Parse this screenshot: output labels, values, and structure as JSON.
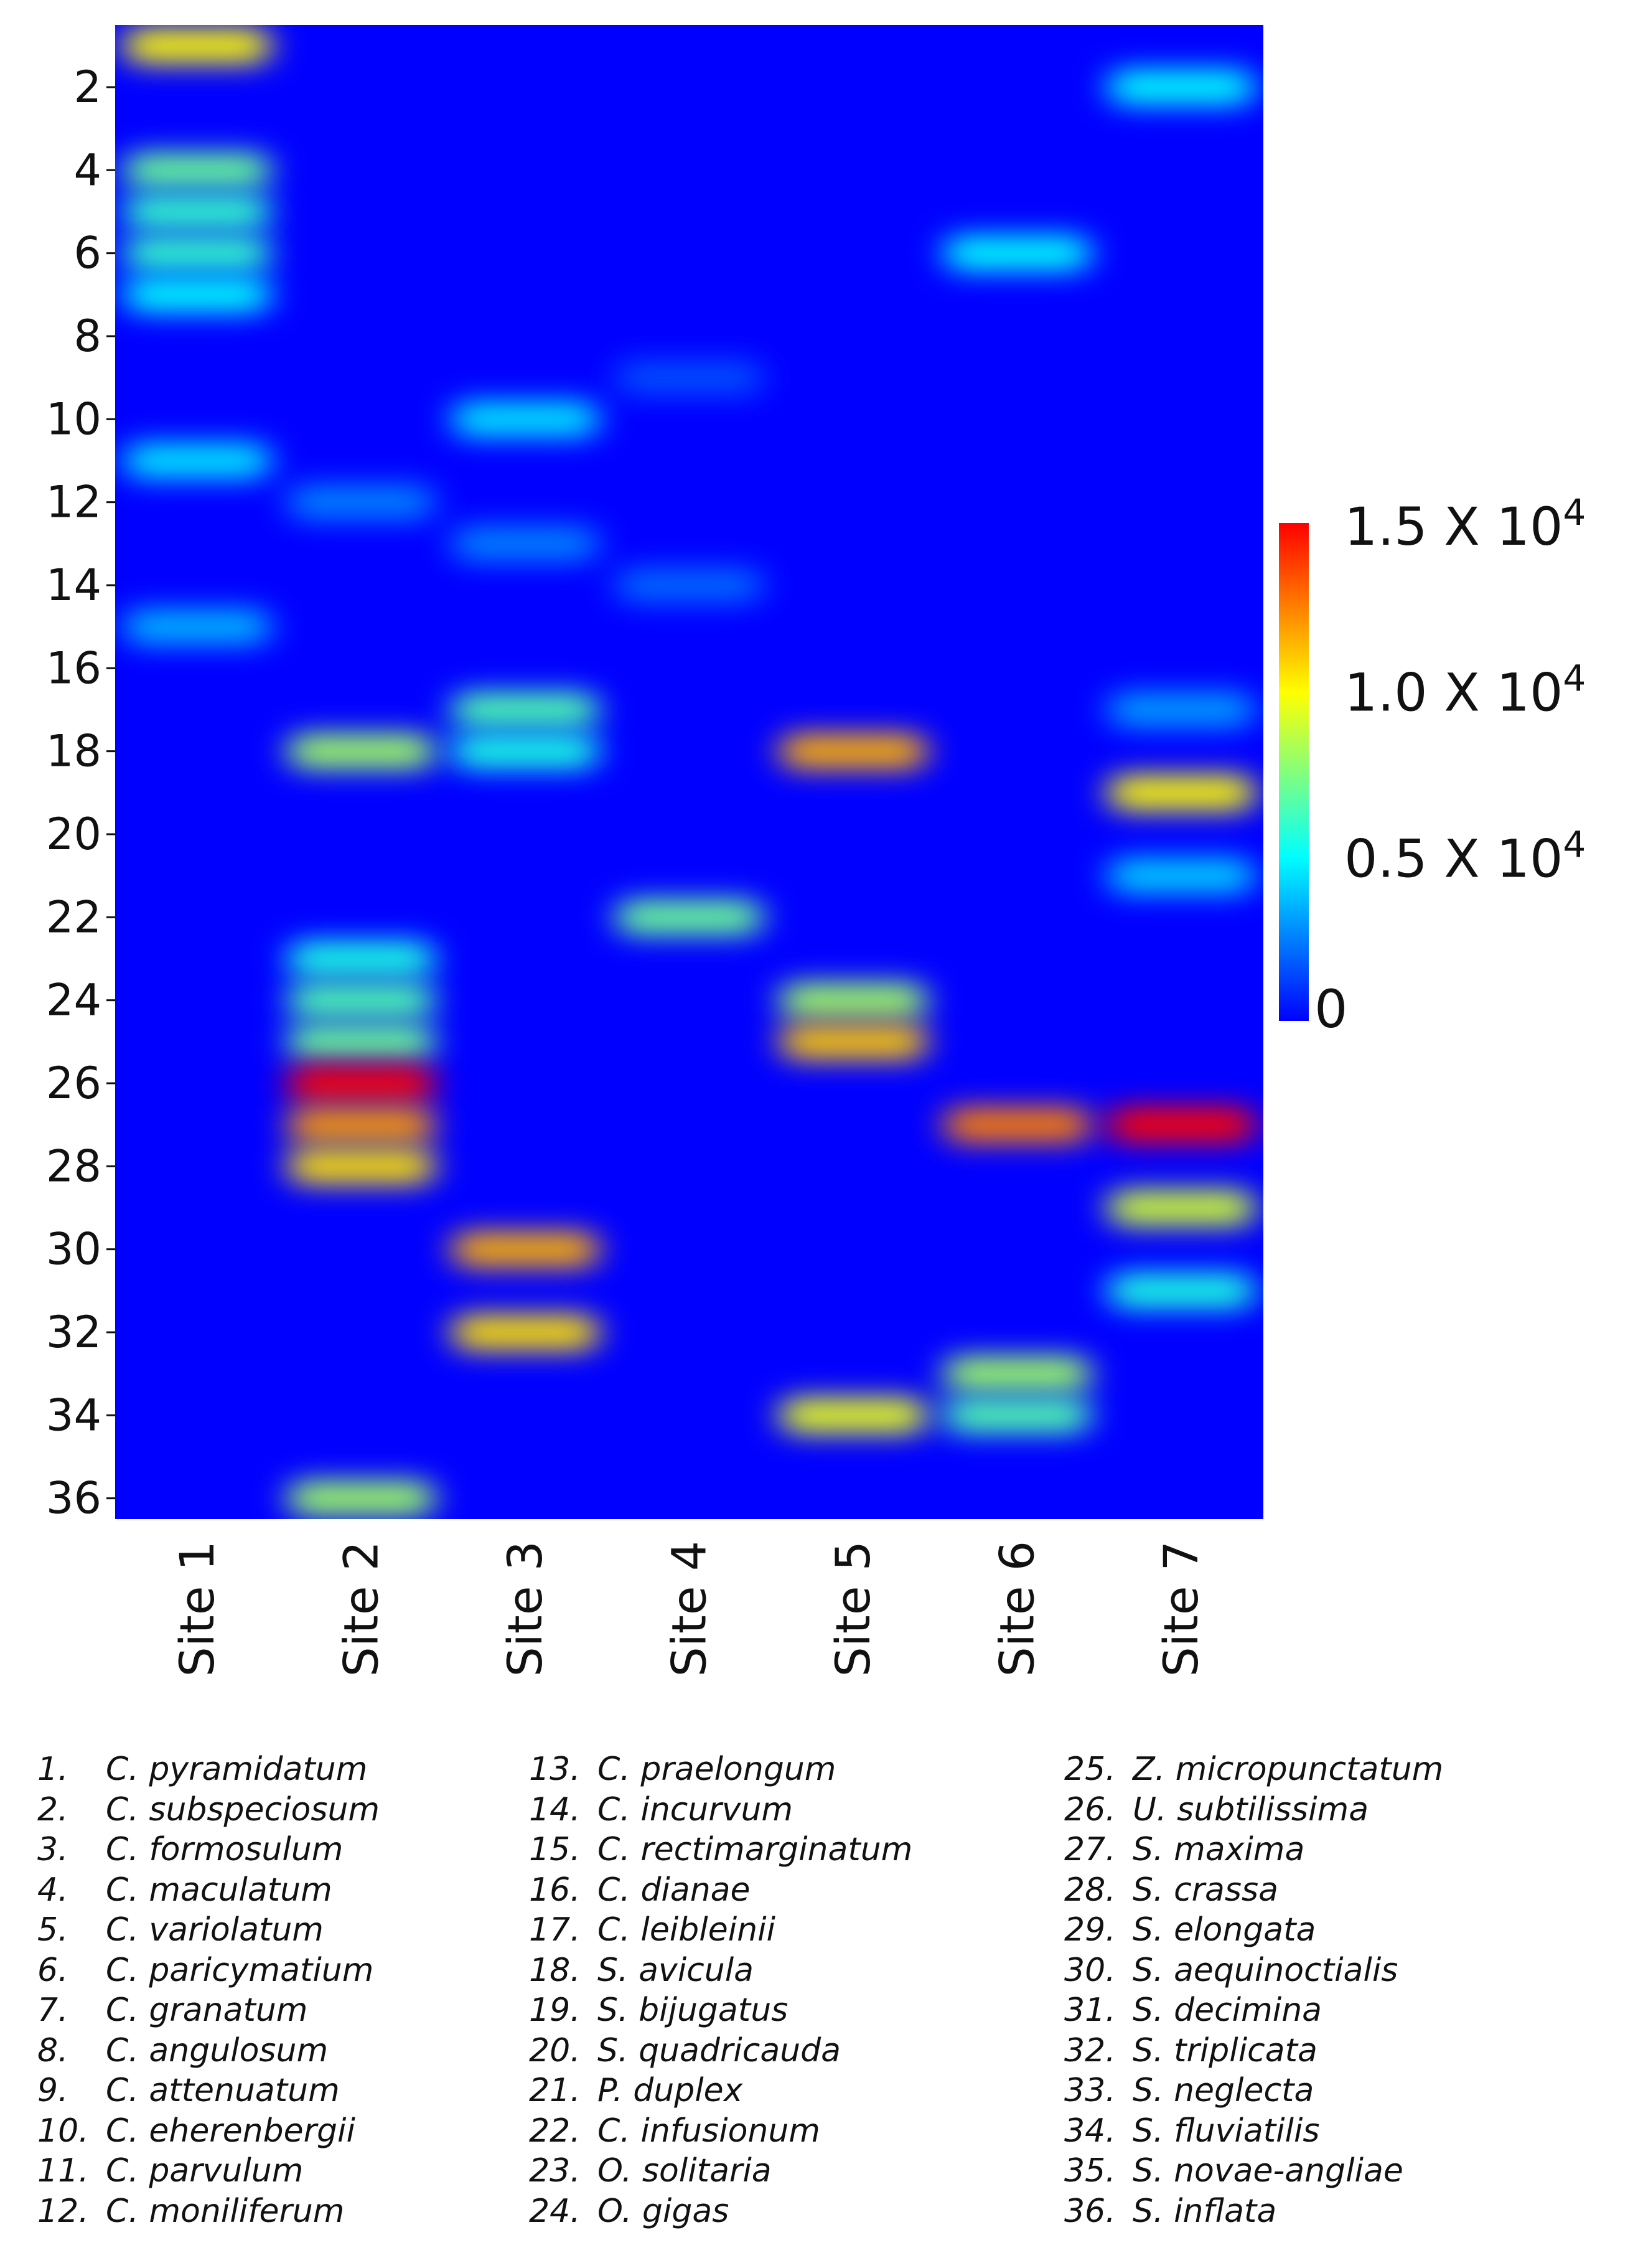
{
  "chart_data": {
    "type": "heatmap",
    "x_categories": [
      "Site 1",
      "Site 2",
      "Site 3",
      "Site 4",
      "Site 5",
      "Site 6",
      "Site 7"
    ],
    "y_range": [
      1,
      36
    ],
    "y_ticks": [
      "2",
      "4",
      "6",
      "8",
      "10",
      "12",
      "14",
      "16",
      "18",
      "20",
      "22",
      "24",
      "26",
      "28",
      "30",
      "32",
      "34",
      "36"
    ],
    "colorbar": {
      "min": 0,
      "max": 15000,
      "labels": [
        {
          "value": 15000,
          "mantissa": "1.5 X 10",
          "exp": "4"
        },
        {
          "value": 10000,
          "mantissa": "1.0 X 10",
          "exp": "4"
        },
        {
          "value": 5000,
          "mantissa": "0.5 X 10",
          "exp": "4"
        },
        {
          "value": 0,
          "mantissa": "0",
          "exp": ""
        }
      ],
      "colors": [
        "#0000ff",
        "#00ffff",
        "#ffff00",
        "#ff0000"
      ]
    },
    "values": [
      {
        "species": 1,
        "site": 1,
        "value": 10000
      },
      {
        "species": 2,
        "site": 7,
        "value": 5000
      },
      {
        "species": 4,
        "site": 1,
        "value": 7000
      },
      {
        "species": 5,
        "site": 1,
        "value": 6000
      },
      {
        "species": 6,
        "site": 1,
        "value": 6000
      },
      {
        "species": 6,
        "site": 6,
        "value": 5000
      },
      {
        "species": 7,
        "site": 1,
        "value": 5000
      },
      {
        "species": 9,
        "site": 4,
        "value": 1500
      },
      {
        "species": 10,
        "site": 3,
        "value": 4500
      },
      {
        "species": 11,
        "site": 1,
        "value": 4500
      },
      {
        "species": 12,
        "site": 2,
        "value": 2500
      },
      {
        "species": 13,
        "site": 3,
        "value": 2500
      },
      {
        "species": 14,
        "site": 4,
        "value": 2000
      },
      {
        "species": 15,
        "site": 1,
        "value": 3500
      },
      {
        "species": 17,
        "site": 3,
        "value": 6500
      },
      {
        "species": 17,
        "site": 7,
        "value": 3000
      },
      {
        "species": 18,
        "site": 2,
        "value": 8000
      },
      {
        "species": 18,
        "site": 3,
        "value": 5500
      },
      {
        "species": 18,
        "site": 5,
        "value": 11500
      },
      {
        "species": 19,
        "site": 7,
        "value": 10000
      },
      {
        "species": 21,
        "site": 7,
        "value": 4000
      },
      {
        "species": 22,
        "site": 4,
        "value": 7000
      },
      {
        "species": 23,
        "site": 2,
        "value": 5500
      },
      {
        "species": 24,
        "site": 2,
        "value": 6500
      },
      {
        "species": 24,
        "site": 5,
        "value": 8000
      },
      {
        "species": 25,
        "site": 2,
        "value": 7000
      },
      {
        "species": 25,
        "site": 5,
        "value": 11000
      },
      {
        "species": 26,
        "site": 2,
        "value": 15000
      },
      {
        "species": 27,
        "site": 2,
        "value": 12000
      },
      {
        "species": 27,
        "site": 6,
        "value": 12500
      },
      {
        "species": 27,
        "site": 7,
        "value": 15000
      },
      {
        "species": 28,
        "site": 2,
        "value": 10500
      },
      {
        "species": 29,
        "site": 7,
        "value": 9000
      },
      {
        "species": 30,
        "site": 3,
        "value": 11500
      },
      {
        "species": 31,
        "site": 7,
        "value": 5500
      },
      {
        "species": 32,
        "site": 3,
        "value": 10500
      },
      {
        "species": 33,
        "site": 6,
        "value": 8000
      },
      {
        "species": 34,
        "site": 5,
        "value": 9500
      },
      {
        "species": 34,
        "site": 6,
        "value": 6500
      },
      {
        "species": 36,
        "site": 2,
        "value": 8000
      }
    ]
  },
  "legend": {
    "columns": [
      [
        {
          "num": "1.",
          "name": "C. pyramidatum"
        },
        {
          "num": "2.",
          "name": "C. subspeciosum"
        },
        {
          "num": "3.",
          "name": "C. formosulum"
        },
        {
          "num": "4.",
          "name": "C. maculatum"
        },
        {
          "num": "5.",
          "name": "C. variolatum"
        },
        {
          "num": "6.",
          "name": "C. paricymatium"
        },
        {
          "num": "7.",
          "name": "C. granatum"
        },
        {
          "num": "8.",
          "name": "C. angulosum"
        },
        {
          "num": "9.",
          "name": "C. attenuatum"
        },
        {
          "num": "10.",
          "name": "C. eherenbergii"
        },
        {
          "num": "11.",
          "name": "C. parvulum"
        },
        {
          "num": "12.",
          "name": "C. moniliferum"
        }
      ],
      [
        {
          "num": "13.",
          "name": "C. praelongum"
        },
        {
          "num": "14.",
          "name": "C. incurvum"
        },
        {
          "num": "15.",
          "name": "C. rectimarginatum"
        },
        {
          "num": "16.",
          "name": "C. dianae"
        },
        {
          "num": "17.",
          "name": "C. leibleinii"
        },
        {
          "num": "18.",
          "name": "S. avicula"
        },
        {
          "num": "19.",
          "name": "S. bijugatus"
        },
        {
          "num": "20.",
          "name": "S. quadricauda"
        },
        {
          "num": "21.",
          "name": "P. duplex"
        },
        {
          "num": "22.",
          "name": "C. infusionum"
        },
        {
          "num": "23.",
          "name": "O. solitaria"
        },
        {
          "num": "24.",
          "name": "O. gigas"
        }
      ],
      [
        {
          "num": "25.",
          "name": "Z. micropunctatum"
        },
        {
          "num": "26.",
          "name": "U. subtilissima"
        },
        {
          "num": "27.",
          "name": "S. maxima"
        },
        {
          "num": "28.",
          "name": "S. crassa"
        },
        {
          "num": "29.",
          "name": "S. elongata"
        },
        {
          "num": "30.",
          "name": "S. aequinoctialis"
        },
        {
          "num": "31.",
          "name": "S. decimina"
        },
        {
          "num": "32.",
          "name": "S. triplicata"
        },
        {
          "num": "33.",
          "name": "S. neglecta"
        },
        {
          "num": "34.",
          "name": "S. fluviatilis"
        },
        {
          "num": "35.",
          "name": "S. novae-angliae"
        },
        {
          "num": "36.",
          "name": "S. inflata"
        }
      ]
    ]
  }
}
